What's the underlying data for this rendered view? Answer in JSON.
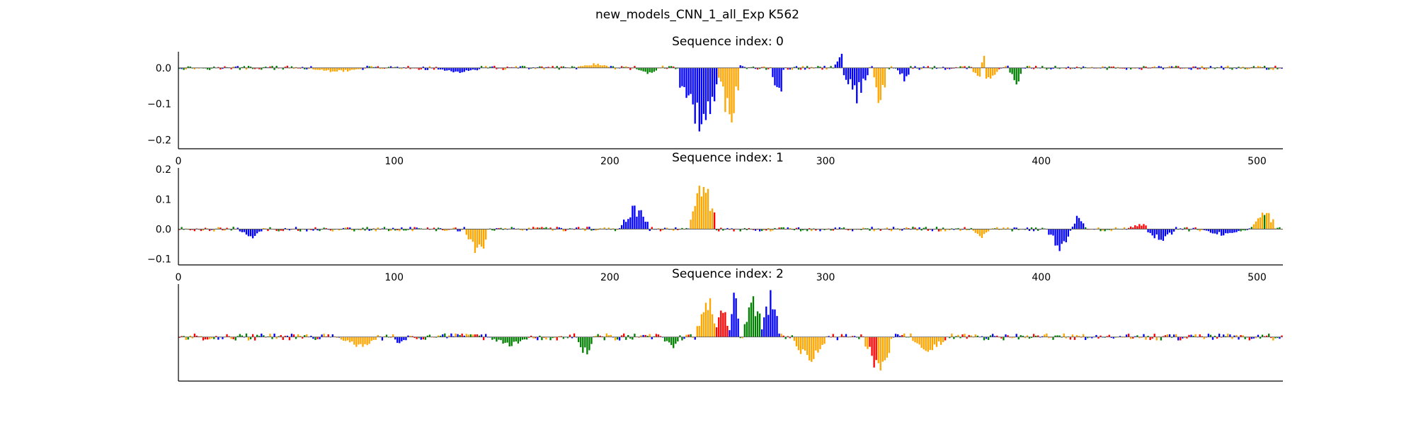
{
  "figure": {
    "title": "new_models_CNN_1_all_Exp K562"
  },
  "colors": {
    "A": "#008000",
    "C": "#0000ff",
    "G": "#ffa500",
    "T": "#ff0000",
    "axis": "#000000"
  },
  "chart_data": [
    {
      "type": "bar",
      "title": "Sequence index: 0",
      "xlim": [
        0,
        512
      ],
      "ylim": [
        -0.225,
        0.045
      ],
      "xticks": [
        "0",
        "100",
        "200",
        "300",
        "400",
        "500"
      ],
      "yticks": [
        "0.0",
        "−0.1",
        "−0.2"
      ],
      "ytick_values": [
        0.0,
        -0.1,
        -0.2
      ],
      "show_x_axis": true,
      "show_y_ticks": true,
      "peaks": [
        {
          "start": 0,
          "end": 512,
          "amp": 0.006,
          "base": "C"
        },
        {
          "start": 60,
          "end": 85,
          "amp": -0.015,
          "base": "G"
        },
        {
          "start": 120,
          "end": 140,
          "amp": -0.018,
          "base": "C"
        },
        {
          "start": 185,
          "end": 200,
          "amp": 0.015,
          "base": "G"
        },
        {
          "start": 212,
          "end": 222,
          "amp": -0.02,
          "base": "A"
        },
        {
          "start": 232,
          "end": 250,
          "amp": -0.225,
          "base": "C"
        },
        {
          "start": 250,
          "end": 260,
          "amp": -0.18,
          "base": "G"
        },
        {
          "start": 255,
          "end": 262,
          "amp": 0.02,
          "base": "C"
        },
        {
          "start": 275,
          "end": 280,
          "amp": -0.12,
          "base": "C"
        },
        {
          "start": 304,
          "end": 310,
          "amp": 0.045,
          "base": "C"
        },
        {
          "start": 308,
          "end": 320,
          "amp": -0.1,
          "base": "C"
        },
        {
          "start": 322,
          "end": 328,
          "amp": -0.13,
          "base": "G"
        },
        {
          "start": 333,
          "end": 339,
          "amp": -0.045,
          "base": "C"
        },
        {
          "start": 368,
          "end": 380,
          "amp": -0.05,
          "base": "G"
        },
        {
          "start": 371,
          "end": 375,
          "amp": 0.035,
          "base": "G"
        },
        {
          "start": 385,
          "end": 391,
          "amp": -0.055,
          "base": "A"
        }
      ]
    },
    {
      "type": "bar",
      "title": "Sequence index: 1",
      "xlim": [
        0,
        512
      ],
      "ylim": [
        -0.12,
        0.205
      ],
      "xticks": [
        "0",
        "100",
        "200",
        "300",
        "400",
        "500"
      ],
      "yticks": [
        "0.2",
        "0.1",
        "0.0",
        "−0.1"
      ],
      "ytick_values": [
        0.2,
        0.1,
        0.0,
        -0.1
      ],
      "show_x_axis": true,
      "show_y_ticks": true,
      "peaks": [
        {
          "start": 0,
          "end": 512,
          "amp": 0.008,
          "base": "C"
        },
        {
          "start": 28,
          "end": 38,
          "amp": -0.04,
          "base": "C"
        },
        {
          "start": 133,
          "end": 143,
          "amp": -0.12,
          "base": "G"
        },
        {
          "start": 205,
          "end": 218,
          "amp": 0.095,
          "base": "C"
        },
        {
          "start": 237,
          "end": 248,
          "amp": 0.205,
          "base": "G"
        },
        {
          "start": 238,
          "end": 246,
          "amp": 0.09,
          "base": "A"
        },
        {
          "start": 246,
          "end": 249,
          "amp": 0.075,
          "base": "T"
        },
        {
          "start": 368,
          "end": 376,
          "amp": -0.03,
          "base": "G"
        },
        {
          "start": 403,
          "end": 413,
          "amp": -0.08,
          "base": "C"
        },
        {
          "start": 414,
          "end": 420,
          "amp": 0.06,
          "base": "C"
        },
        {
          "start": 440,
          "end": 462,
          "amp": 0.03,
          "base": "T"
        },
        {
          "start": 448,
          "end": 462,
          "amp": -0.045,
          "base": "C"
        },
        {
          "start": 475,
          "end": 492,
          "amp": -0.025,
          "base": "C"
        },
        {
          "start": 498,
          "end": 508,
          "amp": 0.09,
          "base": "G"
        },
        {
          "start": 500,
          "end": 506,
          "amp": 0.05,
          "base": "A"
        }
      ]
    },
    {
      "type": "bar",
      "title": "Sequence index: 2",
      "xlim": [
        0,
        512
      ],
      "ylim": [
        -0.1,
        0.12
      ],
      "xticks": [],
      "yticks": [],
      "ytick_values": [],
      "show_x_axis": false,
      "show_y_ticks": false,
      "peaks": [
        {
          "start": 0,
          "end": 512,
          "amp": 0.008,
          "base": "C"
        },
        {
          "start": 75,
          "end": 92,
          "amp": -0.03,
          "base": "G"
        },
        {
          "start": 100,
          "end": 105,
          "amp": -0.025,
          "base": "C"
        },
        {
          "start": 145,
          "end": 162,
          "amp": -0.025,
          "base": "A"
        },
        {
          "start": 185,
          "end": 192,
          "amp": -0.055,
          "base": "A"
        },
        {
          "start": 225,
          "end": 232,
          "amp": -0.04,
          "base": "A"
        },
        {
          "start": 240,
          "end": 250,
          "amp": 0.12,
          "base": "G"
        },
        {
          "start": 248,
          "end": 255,
          "amp": 0.095,
          "base": "T"
        },
        {
          "start": 255,
          "end": 260,
          "amp": 0.12,
          "base": "C"
        },
        {
          "start": 262,
          "end": 270,
          "amp": 0.12,
          "base": "A"
        },
        {
          "start": 270,
          "end": 278,
          "amp": 0.11,
          "base": "C"
        },
        {
          "start": 285,
          "end": 300,
          "amp": -0.07,
          "base": "G"
        },
        {
          "start": 318,
          "end": 330,
          "amp": -0.1,
          "base": "G"
        },
        {
          "start": 320,
          "end": 325,
          "amp": -0.09,
          "base": "T"
        },
        {
          "start": 340,
          "end": 355,
          "amp": -0.04,
          "base": "G"
        }
      ]
    }
  ]
}
